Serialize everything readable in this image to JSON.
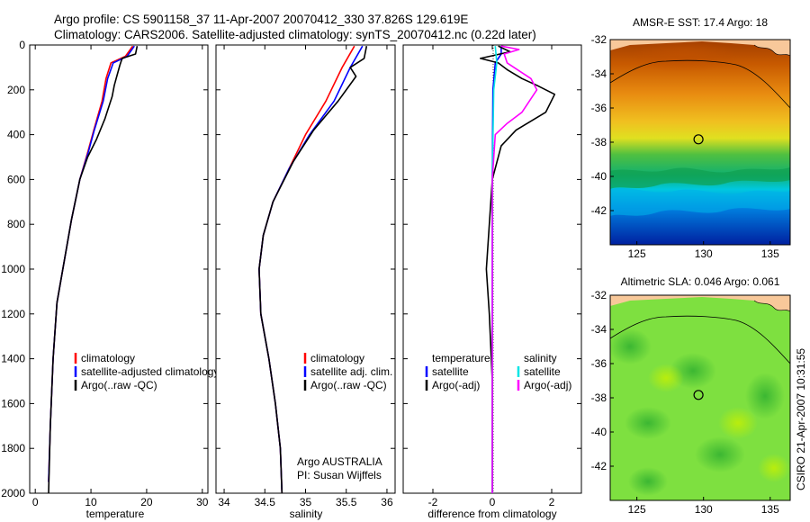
{
  "header": {
    "line1": "Argo profile: CS 5901158_37 11-Apr-2007 20070412_330 37.826S 129.619E",
    "line2": "Climatology: CARS2006. Satellite-adjusted climatology: synTS_20070412.nc (0.22d later)"
  },
  "side_label": "CSIRO 21-Apr-2007 10:31:55",
  "chart_data": [
    {
      "id": "temperature",
      "type": "line",
      "xlabel": "temperature",
      "ylabel": "",
      "xlim": [
        -1,
        31
      ],
      "ylim": [
        2000,
        0
      ],
      "xticks": [
        "0",
        "10",
        "20",
        "30"
      ],
      "xtick_values": [
        0,
        10,
        20,
        30
      ],
      "yticks": [
        "0",
        "200",
        "400",
        "600",
        "800",
        "1000",
        "1200",
        "1400",
        "1600",
        "1800",
        "2000"
      ],
      "ytick_values": [
        0,
        200,
        400,
        600,
        800,
        1000,
        1200,
        1400,
        1600,
        1800,
        2000
      ],
      "legend": [
        "climatology",
        "satellite-adjusted climatology",
        "Argo(..raw -QC)"
      ],
      "series": [
        {
          "name": "climatology",
          "color": "#ff0000",
          "x": [
            17.5,
            16.2,
            13.6,
            12.7,
            12.0,
            10.5,
            9.4,
            8.0,
            6.5,
            5.3,
            3.9,
            3.2,
            2.7,
            2.4
          ],
          "y": [
            5,
            50,
            80,
            150,
            250,
            380,
            480,
            600,
            780,
            950,
            1150,
            1400,
            1700,
            1950
          ]
        },
        {
          "name": "satellite-adjusted climatology",
          "color": "#0000ff",
          "x": [
            17.8,
            16.5,
            14.0,
            13.0,
            12.2,
            10.6,
            9.5,
            8.0,
            6.5,
            5.3,
            3.9,
            3.2,
            2.7,
            2.4
          ],
          "y": [
            5,
            50,
            80,
            150,
            250,
            380,
            480,
            600,
            780,
            950,
            1150,
            1400,
            1700,
            1950
          ]
        },
        {
          "name": "Argo(..raw -QC)",
          "color": "#000000",
          "x": [
            18.3,
            18.0,
            15.6,
            15.2,
            14.2,
            13.8,
            12.5,
            11.0,
            9.4,
            8.0,
            6.5,
            5.3,
            3.9,
            3.2,
            2.7,
            2.4
          ],
          "y": [
            5,
            40,
            60,
            90,
            180,
            230,
            330,
            420,
            500,
            600,
            780,
            950,
            1150,
            1400,
            1700,
            2000
          ]
        }
      ],
      "annotations": []
    },
    {
      "id": "salinity",
      "type": "line",
      "xlabel": "salinity",
      "ylabel": "",
      "xlim": [
        33.9,
        36.1
      ],
      "ylim": [
        2000,
        0
      ],
      "xticks": [
        "34",
        "34.5",
        "35",
        "35.5",
        "36"
      ],
      "xtick_values": [
        34,
        34.5,
        35,
        35.5,
        36
      ],
      "legend": [
        "climatology",
        "satellite adj. clim.",
        "Argo(..raw -QC)"
      ],
      "series": [
        {
          "name": "climatology",
          "color": "#ff0000",
          "x": [
            35.6,
            35.45,
            35.25,
            35.0,
            34.8,
            34.6,
            34.48,
            34.43,
            34.45,
            34.55,
            34.63,
            34.69,
            34.71
          ],
          "y": [
            5,
            100,
            250,
            400,
            550,
            700,
            850,
            1000,
            1200,
            1400,
            1600,
            1800,
            2000
          ]
        },
        {
          "name": "satellite adj. clim.",
          "color": "#0000ff",
          "x": [
            35.7,
            35.55,
            35.35,
            35.05,
            34.8,
            34.6,
            34.48,
            34.43,
            34.45,
            34.55,
            34.63,
            34.69,
            34.71
          ],
          "y": [
            5,
            100,
            250,
            400,
            550,
            700,
            850,
            1000,
            1200,
            1400,
            1600,
            1800,
            2000
          ]
        },
        {
          "name": "Argo(..raw -QC)",
          "color": "#000000",
          "x": [
            35.75,
            35.72,
            35.55,
            35.62,
            35.4,
            35.1,
            34.85,
            34.6,
            34.48,
            34.43,
            34.45,
            34.55,
            34.63,
            34.69,
            34.71
          ],
          "y": [
            5,
            60,
            100,
            140,
            250,
            380,
            520,
            700,
            850,
            1000,
            1200,
            1400,
            1600,
            1800,
            2000
          ]
        }
      ],
      "annotations": [
        "Argo AUSTRALIA",
        "PI: Susan Wijffels"
      ]
    },
    {
      "id": "difference",
      "type": "line",
      "xlabel": "difference from climatology",
      "ylabel": "",
      "xlim": [
        -3,
        3
      ],
      "ylim": [
        2000,
        0
      ],
      "xticks": [
        "-2",
        "0",
        "2"
      ],
      "xtick_values": [
        -2,
        0,
        2
      ],
      "legend": [
        "temperature",
        "satellite",
        "Argo(-adj)",
        "salinity",
        "satellite",
        "Argo(-adj)"
      ],
      "series": [
        {
          "name": "temperature satellite",
          "color": "#0000ff",
          "x": [
            0.3,
            0.3,
            0.1,
            0.02,
            0.0,
            0.0,
            0.0
          ],
          "y": [
            5,
            40,
            80,
            200,
            600,
            1200,
            2000
          ]
        },
        {
          "name": "temperature Argo(-adj)",
          "color": "#000000",
          "x": [
            0.2,
            0.6,
            -0.4,
            0.2,
            0.5,
            1.0,
            1.5,
            2.1,
            1.8,
            0.8,
            0.3,
            0.0,
            -0.1,
            -0.2,
            -0.1,
            0.0,
            0.0
          ],
          "y": [
            5,
            30,
            60,
            80,
            110,
            150,
            180,
            220,
            300,
            380,
            450,
            600,
            800,
            1000,
            1200,
            1500,
            2000
          ]
        },
        {
          "name": "salinity satellite",
          "color": "#00e5e5",
          "x": [
            0.1,
            0.15,
            0.05,
            0.0,
            0.0,
            0.0
          ],
          "y": [
            5,
            80,
            200,
            600,
            1200,
            2000
          ]
        },
        {
          "name": "salinity Argo(-adj)",
          "color": "#ff00ff",
          "x": [
            0.3,
            0.9,
            0.4,
            0.5,
            1.3,
            1.5,
            1.0,
            0.5,
            0.1,
            0.0,
            0.0
          ],
          "y": [
            5,
            20,
            40,
            80,
            150,
            200,
            300,
            350,
            400,
            600,
            2000
          ]
        }
      ],
      "annotations": []
    },
    {
      "id": "sst-map",
      "type": "heatmap",
      "title": "AMSR-E SST: 17.4 Argo: 18",
      "xlim": [
        123,
        136.5
      ],
      "ylim": [
        -44,
        -32
      ],
      "xticks": [
        "125",
        "130",
        "135"
      ],
      "xtick_values": [
        125,
        130,
        135
      ],
      "yticks": [
        "-32",
        "-34",
        "-36",
        "-38",
        "-40",
        "-42"
      ],
      "ytick_values": [
        -32,
        -34,
        -36,
        -38,
        -40,
        -42
      ],
      "float_position": {
        "lon": 129.62,
        "lat": -37.83
      },
      "values": []
    },
    {
      "id": "sla-map",
      "type": "heatmap",
      "title": "Altimetric SLA: 0.046 Argo: 0.061",
      "xlim": [
        123,
        136.5
      ],
      "ylim": [
        -44,
        -32
      ],
      "xticks": [
        "125",
        "130",
        "135"
      ],
      "xtick_values": [
        125,
        130,
        135
      ],
      "yticks": [
        "-32",
        "-34",
        "-36",
        "-38",
        "-40",
        "-42"
      ],
      "ytick_values": [
        -32,
        -34,
        -36,
        -38,
        -40,
        -42
      ],
      "float_position": {
        "lon": 129.62,
        "lat": -37.83
      },
      "values": []
    }
  ]
}
